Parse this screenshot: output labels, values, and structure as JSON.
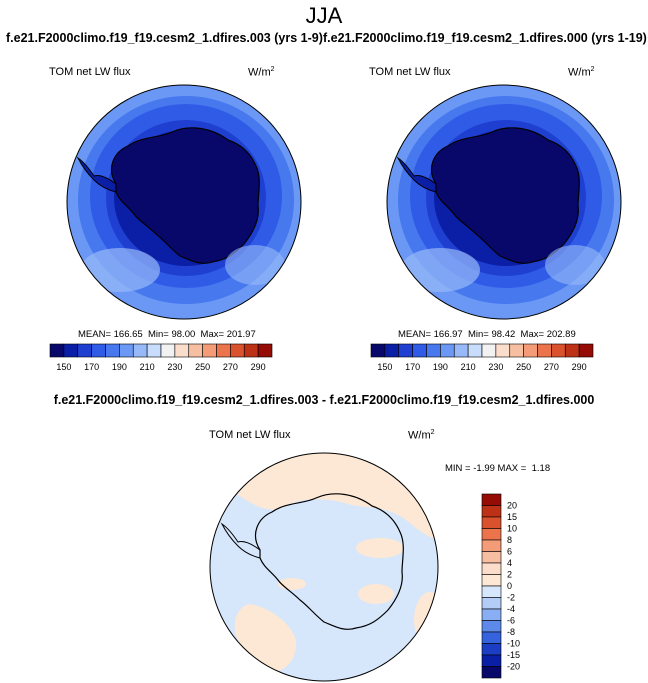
{
  "figure": {
    "season": "JJA",
    "case_test": "f.e21.F2000climo.f19_f19.cesm2_1.dfires.003 (yrs 1-9)",
    "case_ctrl": "f.e21.F2000climo.f19_f19.cesm2_1.dfires.000 (yrs 1-19)",
    "diff_title": "f.e21.F2000climo.f19_f19.cesm2_1.dfires.003 - f.e21.F2000climo.f19_f19.cesm2_1.dfires.000"
  },
  "chart_data": [
    {
      "type": "heatmap",
      "projection": "south-polar-stereographic",
      "variable": "TOM net LW flux",
      "units": "W/m",
      "units_exp": "2",
      "mean_label": "MEAN=",
      "mean": "166.65",
      "min_label": "Min=",
      "min": "98.00",
      "max_label": "Max=",
      "max": "201.97",
      "levels": [
        140,
        150,
        160,
        170,
        180,
        190,
        200,
        210,
        220,
        230,
        240,
        250,
        260,
        270,
        280,
        290,
        300
      ],
      "tick_labels": [
        "150",
        "170",
        "190",
        "210",
        "230",
        "250",
        "270",
        "290"
      ],
      "colors": [
        "#08086b",
        "#0a1fa6",
        "#1f3fd1",
        "#2f5be6",
        "#4778ee",
        "#6a98f4",
        "#97b9f8",
        "#c8dcfb",
        "#f2f2f2",
        "#fbddcb",
        "#f7bfa2",
        "#f49c77",
        "#eb744d",
        "#d9512d",
        "#bd3217",
        "#940c05"
      ]
    },
    {
      "type": "heatmap",
      "projection": "south-polar-stereographic",
      "variable": "TOM net LW flux",
      "units": "W/m",
      "units_exp": "2",
      "mean_label": "MEAN=",
      "mean": "166.97",
      "min_label": "Min=",
      "min": "98.42",
      "max_label": "Max=",
      "max": "202.89",
      "levels": [
        140,
        150,
        160,
        170,
        180,
        190,
        200,
        210,
        220,
        230,
        240,
        250,
        260,
        270,
        280,
        290,
        300
      ],
      "tick_labels": [
        "150",
        "170",
        "190",
        "210",
        "230",
        "250",
        "270",
        "290"
      ],
      "colors": [
        "#08086b",
        "#0a1fa6",
        "#1f3fd1",
        "#2f5be6",
        "#4778ee",
        "#6a98f4",
        "#97b9f8",
        "#c8dcfb",
        "#f2f2f2",
        "#fbddcb",
        "#f7bfa2",
        "#f49c77",
        "#eb744d",
        "#d9512d",
        "#bd3217",
        "#940c05"
      ]
    },
    {
      "type": "heatmap",
      "projection": "south-polar-stereographic",
      "variable": "TOM net LW flux",
      "units": "W/m",
      "units_exp": "2",
      "min_label": "MIN =",
      "min": "-1.99",
      "max_label": "MAX =",
      "max": "1.18",
      "tick_labels": [
        "20",
        "15",
        "10",
        "8",
        "6",
        "4",
        "2",
        "0",
        "-2",
        "-4",
        "-6",
        "-8",
        "-10",
        "-15",
        "-20"
      ],
      "colors": [
        "#940c05",
        "#bd3217",
        "#d9512d",
        "#eb744d",
        "#f49c77",
        "#f7bfa2",
        "#fbddcb",
        "#fde8d6",
        "#d6e6fb",
        "#b4cdf7",
        "#8aaef3",
        "#5d8aea",
        "#3563dd",
        "#1b3ec4",
        "#0a1fa6",
        "#08086b"
      ]
    }
  ]
}
